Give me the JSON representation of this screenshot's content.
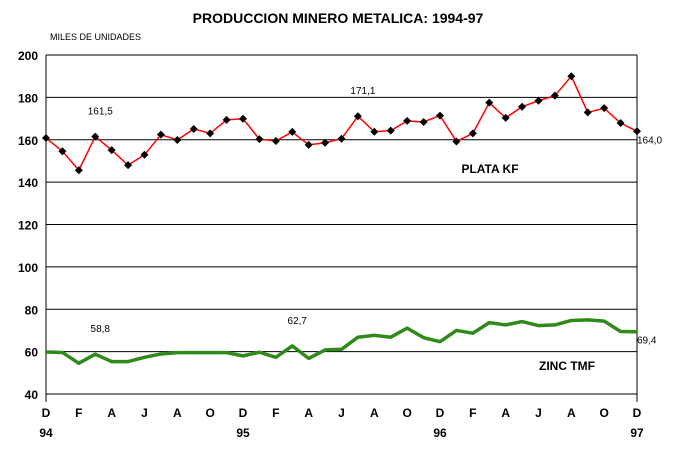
{
  "chart_data": {
    "type": "line",
    "title": "PRODUCCION MINERO METALICA: 1994-97",
    "ylabel": "MILES DE UNIDADES",
    "xlabel": "",
    "ylim": [
      40,
      200
    ],
    "yticks": [
      40,
      60,
      80,
      100,
      120,
      140,
      160,
      180,
      200
    ],
    "grid": true,
    "x": [
      "D94",
      "E95",
      "F95",
      "M95",
      "A95",
      "M95",
      "J95",
      "J95",
      "A95",
      "S95",
      "O95",
      "N95",
      "D95",
      "E96",
      "F96",
      "M96",
      "A96",
      "M96",
      "J96",
      "J96",
      "A96",
      "S96",
      "O96",
      "N96",
      "D96",
      "E97",
      "F97",
      "M97",
      "A97",
      "M97",
      "J97",
      "J97",
      "A97",
      "S97",
      "O97",
      "N97",
      "D97"
    ],
    "xtick_labels": [
      "D",
      "F",
      "A",
      "J",
      "A",
      "O",
      "D",
      "F",
      "A",
      "J",
      "A",
      "O",
      "D",
      "F",
      "A",
      "J",
      "A",
      "O",
      "D"
    ],
    "year_labels": [
      {
        "label": "94",
        "index": 0
      },
      {
        "label": "95",
        "index": 12
      },
      {
        "label": "96",
        "index": 24
      },
      {
        "label": "97",
        "index": 36
      }
    ],
    "series": [
      {
        "name": "PLATA KF",
        "color": "#ff0000",
        "marker": "diamond",
        "values": [
          160.8,
          154.6,
          145.6,
          161.5,
          155.1,
          148.0,
          152.9,
          162.4,
          159.9,
          165.1,
          163.0,
          169.4,
          169.9,
          160.3,
          159.4,
          163.7,
          157.6,
          158.6,
          160.5,
          171.1,
          163.8,
          164.3,
          168.9,
          168.4,
          171.4,
          159.2,
          163.0,
          177.5,
          170.3,
          175.6,
          178.4,
          180.8,
          190.0,
          172.9,
          174.9,
          167.9,
          164.0
        ]
      },
      {
        "name": "ZINC TMF",
        "color": "#2e8b1a",
        "marker": "none",
        "values": [
          59.8,
          59.6,
          54.5,
          58.8,
          55.3,
          55.3,
          57.3,
          58.9,
          59.5,
          59.5,
          59.5,
          59.5,
          58.0,
          59.7,
          57.3,
          62.7,
          56.8,
          60.8,
          61.1,
          66.8,
          67.7,
          66.8,
          71.1,
          66.6,
          64.7,
          70.0,
          68.7,
          73.7,
          72.6,
          74.2,
          72.3,
          72.6,
          74.7,
          75.0,
          74.4,
          69.5,
          69.4
        ]
      }
    ],
    "annotations": [
      {
        "series": 0,
        "index": 3,
        "text": "161,5"
      },
      {
        "series": 0,
        "index": 19,
        "text": "171,1"
      },
      {
        "series": 0,
        "index": 36,
        "text": "164,0"
      },
      {
        "series": 1,
        "index": 3,
        "text": "58,8"
      },
      {
        "series": 1,
        "index": 15,
        "text": "62,7"
      },
      {
        "series": 1,
        "index": 36,
        "text": "69,4"
      }
    ]
  }
}
